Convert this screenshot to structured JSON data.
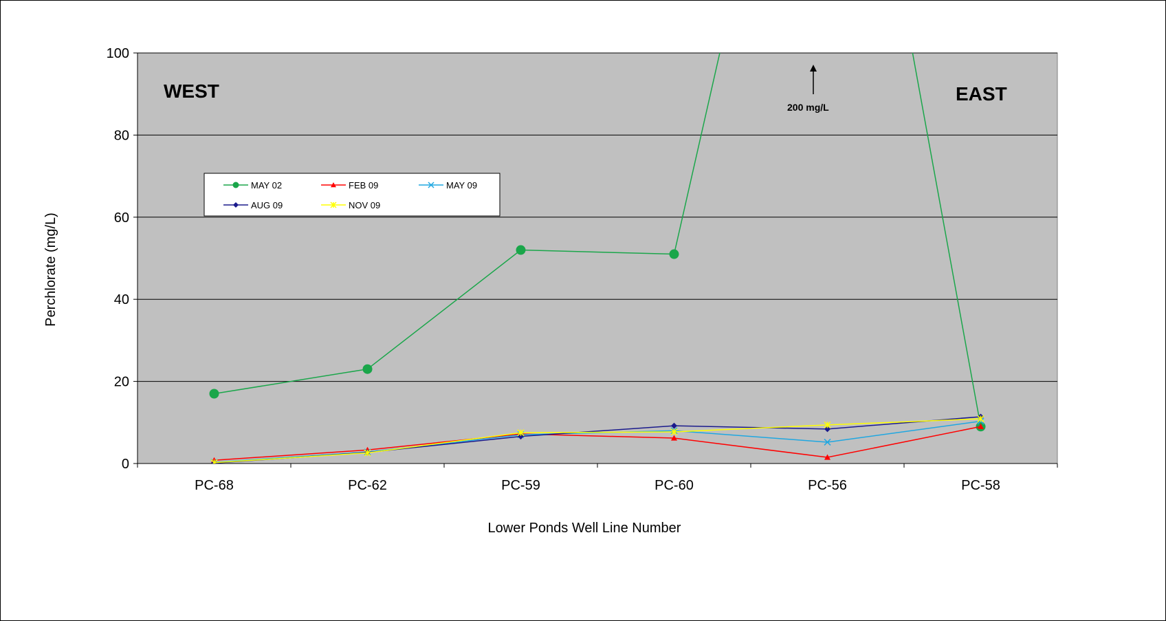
{
  "chart_data": {
    "type": "line",
    "xlabel": "Lower Ponds Well Line Number",
    "ylabel": "Perchlorate (mg/L)",
    "ylim": [
      0,
      100
    ],
    "yticks": [
      0,
      20,
      40,
      60,
      80,
      100
    ],
    "categories": [
      "PC-68",
      "PC-62",
      "PC-59",
      "PC-60",
      "PC-56",
      "PC-58"
    ],
    "grid": "horizontal",
    "background": "#c0c0c0",
    "legend_position": "upper-left inside plot",
    "series": [
      {
        "name": "MAY 02",
        "color": "#1aa64a",
        "marker": "circle",
        "values": [
          17,
          23,
          52,
          51,
          200,
          9
        ]
      },
      {
        "name": "FEB 09",
        "color": "#ff0000",
        "marker": "triangle",
        "values": [
          0.8,
          3.3,
          7.2,
          6.2,
          1.5,
          9.0
        ]
      },
      {
        "name": "MAY 09",
        "color": "#1ea7e1",
        "marker": "x",
        "values": [
          0.3,
          2.8,
          7.0,
          8.0,
          5.2,
          10.3
        ]
      },
      {
        "name": "AUG 09",
        "color": "#1a1a8c",
        "marker": "diamond",
        "values": [
          0.1,
          2.7,
          6.6,
          9.2,
          8.4,
          11.4
        ]
      },
      {
        "name": "NOV 09",
        "color": "#ffff00",
        "marker": "star",
        "values": [
          0.2,
          2.6,
          7.5,
          7.7,
          9.4,
          10.9
        ]
      }
    ],
    "annotations": {
      "west": "WEST",
      "east": "EAST",
      "offscale": "200 mg/L"
    }
  }
}
